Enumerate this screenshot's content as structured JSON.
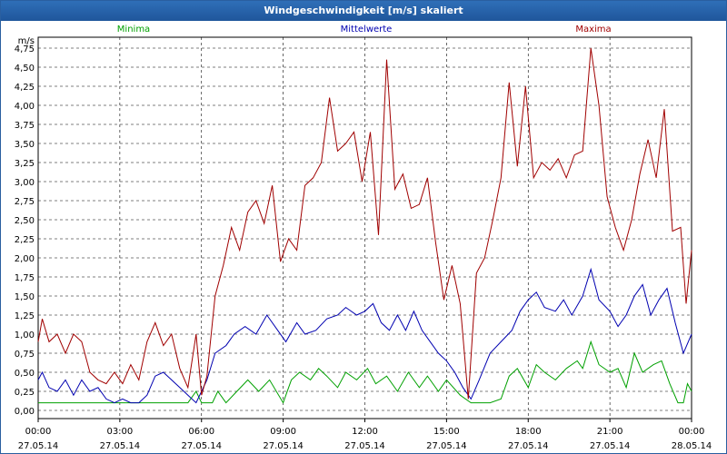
{
  "window": {
    "title": "Windgeschwindigkeit [m/s] skaliert"
  },
  "colors": {
    "min": "#00a000",
    "mean": "#0000b0",
    "max": "#a00000",
    "grid": "#000000"
  },
  "chart_data": {
    "type": "line",
    "title": "Windgeschwindigkeit [m/s] skaliert",
    "ylabel": "m/s",
    "ylim": [
      0,
      5
    ],
    "y_ticks": [
      "0,00",
      "0,25",
      "0,50",
      "0,75",
      "1,00",
      "1,25",
      "1,50",
      "1,75",
      "2,00",
      "2,25",
      "2,50",
      "2,75",
      "3,00",
      "3,25",
      "3,50",
      "3,75",
      "4,00",
      "4,25",
      "4,50",
      "4,75"
    ],
    "x_ticks": [
      {
        "time": "00:00",
        "date": "27.05.14"
      },
      {
        "time": "03:00",
        "date": "27.05.14"
      },
      {
        "time": "06:00",
        "date": "27.05.14"
      },
      {
        "time": "09:00",
        "date": "27.05.14"
      },
      {
        "time": "12:00",
        "date": "27.05.14"
      },
      {
        "time": "15:00",
        "date": "27.05.14"
      },
      {
        "time": "18:00",
        "date": "27.05.14"
      },
      {
        "time": "21:00",
        "date": "27.05.14"
      },
      {
        "time": "00:00",
        "date": "28.05.14"
      }
    ],
    "xlim_hours": [
      0,
      24
    ],
    "grid": true,
    "series": [
      {
        "name": "Minima",
        "color": "#00a000",
        "points": [
          [
            0,
            0.1
          ],
          [
            5.5,
            0.1
          ],
          [
            5.8,
            0.25
          ],
          [
            6.0,
            0.1
          ],
          [
            6.4,
            0.1
          ],
          [
            6.6,
            0.25
          ],
          [
            6.9,
            0.1
          ],
          [
            7.3,
            0.25
          ],
          [
            7.7,
            0.4
          ],
          [
            8.1,
            0.25
          ],
          [
            8.5,
            0.4
          ],
          [
            9.0,
            0.1
          ],
          [
            9.3,
            0.4
          ],
          [
            9.6,
            0.5
          ],
          [
            10.0,
            0.4
          ],
          [
            10.3,
            0.55
          ],
          [
            10.6,
            0.45
          ],
          [
            11.0,
            0.3
          ],
          [
            11.3,
            0.5
          ],
          [
            11.7,
            0.4
          ],
          [
            12.1,
            0.55
          ],
          [
            12.4,
            0.35
          ],
          [
            12.8,
            0.45
          ],
          [
            13.2,
            0.25
          ],
          [
            13.6,
            0.5
          ],
          [
            14.0,
            0.3
          ],
          [
            14.3,
            0.45
          ],
          [
            14.7,
            0.25
          ],
          [
            15.0,
            0.4
          ],
          [
            15.5,
            0.2
          ],
          [
            15.9,
            0.1
          ],
          [
            16.3,
            0.1
          ],
          [
            16.6,
            0.1
          ],
          [
            17.0,
            0.15
          ],
          [
            17.3,
            0.45
          ],
          [
            17.6,
            0.55
          ],
          [
            18.0,
            0.3
          ],
          [
            18.3,
            0.6
          ],
          [
            18.6,
            0.5
          ],
          [
            19.0,
            0.4
          ],
          [
            19.4,
            0.55
          ],
          [
            19.8,
            0.65
          ],
          [
            20.0,
            0.55
          ],
          [
            20.3,
            0.9
          ],
          [
            20.6,
            0.6
          ],
          [
            21.0,
            0.5
          ],
          [
            21.3,
            0.55
          ],
          [
            21.6,
            0.3
          ],
          [
            21.9,
            0.75
          ],
          [
            22.2,
            0.5
          ],
          [
            22.6,
            0.6
          ],
          [
            22.9,
            0.65
          ],
          [
            23.2,
            0.35
          ],
          [
            23.5,
            0.1
          ],
          [
            23.7,
            0.1
          ],
          [
            23.85,
            0.35
          ],
          [
            24,
            0.25
          ]
        ]
      },
      {
        "name": "Mittelwerte",
        "color": "#0000b0",
        "points": [
          [
            0,
            0.4
          ],
          [
            0.15,
            0.5
          ],
          [
            0.4,
            0.3
          ],
          [
            0.7,
            0.25
          ],
          [
            1.0,
            0.4
          ],
          [
            1.3,
            0.2
          ],
          [
            1.6,
            0.4
          ],
          [
            1.9,
            0.25
          ],
          [
            2.2,
            0.3
          ],
          [
            2.5,
            0.15
          ],
          [
            2.8,
            0.1
          ],
          [
            3.1,
            0.15
          ],
          [
            3.4,
            0.1
          ],
          [
            3.7,
            0.1
          ],
          [
            4.0,
            0.2
          ],
          [
            4.3,
            0.45
          ],
          [
            4.6,
            0.5
          ],
          [
            4.9,
            0.4
          ],
          [
            5.2,
            0.3
          ],
          [
            5.5,
            0.2
          ],
          [
            5.8,
            0.1
          ],
          [
            6.0,
            0.25
          ],
          [
            6.2,
            0.4
          ],
          [
            6.5,
            0.75
          ],
          [
            6.9,
            0.85
          ],
          [
            7.2,
            1.0
          ],
          [
            7.6,
            1.1
          ],
          [
            8.0,
            1.0
          ],
          [
            8.4,
            1.25
          ],
          [
            8.8,
            1.05
          ],
          [
            9.1,
            0.9
          ],
          [
            9.5,
            1.15
          ],
          [
            9.8,
            1.0
          ],
          [
            10.2,
            1.05
          ],
          [
            10.6,
            1.2
          ],
          [
            11.0,
            1.25
          ],
          [
            11.3,
            1.35
          ],
          [
            11.7,
            1.25
          ],
          [
            12.0,
            1.3
          ],
          [
            12.3,
            1.4
          ],
          [
            12.6,
            1.15
          ],
          [
            12.9,
            1.05
          ],
          [
            13.2,
            1.25
          ],
          [
            13.5,
            1.05
          ],
          [
            13.8,
            1.3
          ],
          [
            14.1,
            1.05
          ],
          [
            14.4,
            0.9
          ],
          [
            14.7,
            0.75
          ],
          [
            15.0,
            0.65
          ],
          [
            15.3,
            0.5
          ],
          [
            15.6,
            0.3
          ],
          [
            15.9,
            0.15
          ],
          [
            16.2,
            0.4
          ],
          [
            16.6,
            0.75
          ],
          [
            17.0,
            0.9
          ],
          [
            17.4,
            1.05
          ],
          [
            17.7,
            1.3
          ],
          [
            18.0,
            1.45
          ],
          [
            18.3,
            1.55
          ],
          [
            18.6,
            1.35
          ],
          [
            19.0,
            1.3
          ],
          [
            19.3,
            1.45
          ],
          [
            19.6,
            1.25
          ],
          [
            20.0,
            1.5
          ],
          [
            20.3,
            1.85
          ],
          [
            20.6,
            1.45
          ],
          [
            21.0,
            1.3
          ],
          [
            21.3,
            1.1
          ],
          [
            21.6,
            1.25
          ],
          [
            21.9,
            1.5
          ],
          [
            22.2,
            1.65
          ],
          [
            22.5,
            1.25
          ],
          [
            22.8,
            1.45
          ],
          [
            23.1,
            1.6
          ],
          [
            23.4,
            1.15
          ],
          [
            23.7,
            0.75
          ],
          [
            24,
            1.0
          ]
        ]
      },
      {
        "name": "Maxima",
        "color": "#a00000",
        "points": [
          [
            0,
            0.9
          ],
          [
            0.15,
            1.2
          ],
          [
            0.4,
            0.9
          ],
          [
            0.7,
            1.0
          ],
          [
            1.0,
            0.75
          ],
          [
            1.3,
            1.0
          ],
          [
            1.6,
            0.9
          ],
          [
            1.9,
            0.5
          ],
          [
            2.2,
            0.4
          ],
          [
            2.5,
            0.35
          ],
          [
            2.8,
            0.5
          ],
          [
            3.1,
            0.35
          ],
          [
            3.4,
            0.6
          ],
          [
            3.7,
            0.4
          ],
          [
            4.0,
            0.9
          ],
          [
            4.3,
            1.15
          ],
          [
            4.6,
            0.85
          ],
          [
            4.9,
            1.0
          ],
          [
            5.2,
            0.55
          ],
          [
            5.5,
            0.3
          ],
          [
            5.8,
            1.0
          ],
          [
            6.0,
            0.2
          ],
          [
            6.2,
            0.45
          ],
          [
            6.5,
            1.5
          ],
          [
            6.8,
            1.9
          ],
          [
            7.1,
            2.4
          ],
          [
            7.4,
            2.1
          ],
          [
            7.7,
            2.6
          ],
          [
            8.0,
            2.75
          ],
          [
            8.3,
            2.45
          ],
          [
            8.6,
            2.95
          ],
          [
            8.9,
            1.95
          ],
          [
            9.2,
            2.25
          ],
          [
            9.5,
            2.1
          ],
          [
            9.8,
            2.95
          ],
          [
            10.1,
            3.05
          ],
          [
            10.4,
            3.25
          ],
          [
            10.7,
            4.1
          ],
          [
            11.0,
            3.4
          ],
          [
            11.3,
            3.5
          ],
          [
            11.6,
            3.65
          ],
          [
            11.9,
            3.0
          ],
          [
            12.2,
            3.65
          ],
          [
            12.5,
            2.3
          ],
          [
            12.8,
            4.6
          ],
          [
            13.1,
            2.9
          ],
          [
            13.4,
            3.1
          ],
          [
            13.7,
            2.65
          ],
          [
            14.0,
            2.7
          ],
          [
            14.3,
            3.05
          ],
          [
            14.6,
            2.2
          ],
          [
            14.9,
            1.45
          ],
          [
            15.2,
            1.9
          ],
          [
            15.5,
            1.4
          ],
          [
            15.8,
            0.15
          ],
          [
            16.1,
            1.8
          ],
          [
            16.4,
            2.0
          ],
          [
            16.7,
            2.5
          ],
          [
            17.0,
            3.05
          ],
          [
            17.3,
            4.3
          ],
          [
            17.6,
            3.2
          ],
          [
            17.9,
            4.25
          ],
          [
            18.2,
            3.05
          ],
          [
            18.5,
            3.25
          ],
          [
            18.8,
            3.15
          ],
          [
            19.1,
            3.3
          ],
          [
            19.4,
            3.05
          ],
          [
            19.7,
            3.35
          ],
          [
            20.0,
            3.4
          ],
          [
            20.3,
            4.75
          ],
          [
            20.6,
            4.0
          ],
          [
            20.9,
            2.8
          ],
          [
            21.2,
            2.4
          ],
          [
            21.5,
            2.1
          ],
          [
            21.8,
            2.5
          ],
          [
            22.1,
            3.1
          ],
          [
            22.4,
            3.55
          ],
          [
            22.7,
            3.05
          ],
          [
            23.0,
            3.95
          ],
          [
            23.3,
            2.35
          ],
          [
            23.6,
            2.4
          ],
          [
            23.8,
            1.4
          ],
          [
            24,
            2.1
          ]
        ]
      }
    ]
  }
}
